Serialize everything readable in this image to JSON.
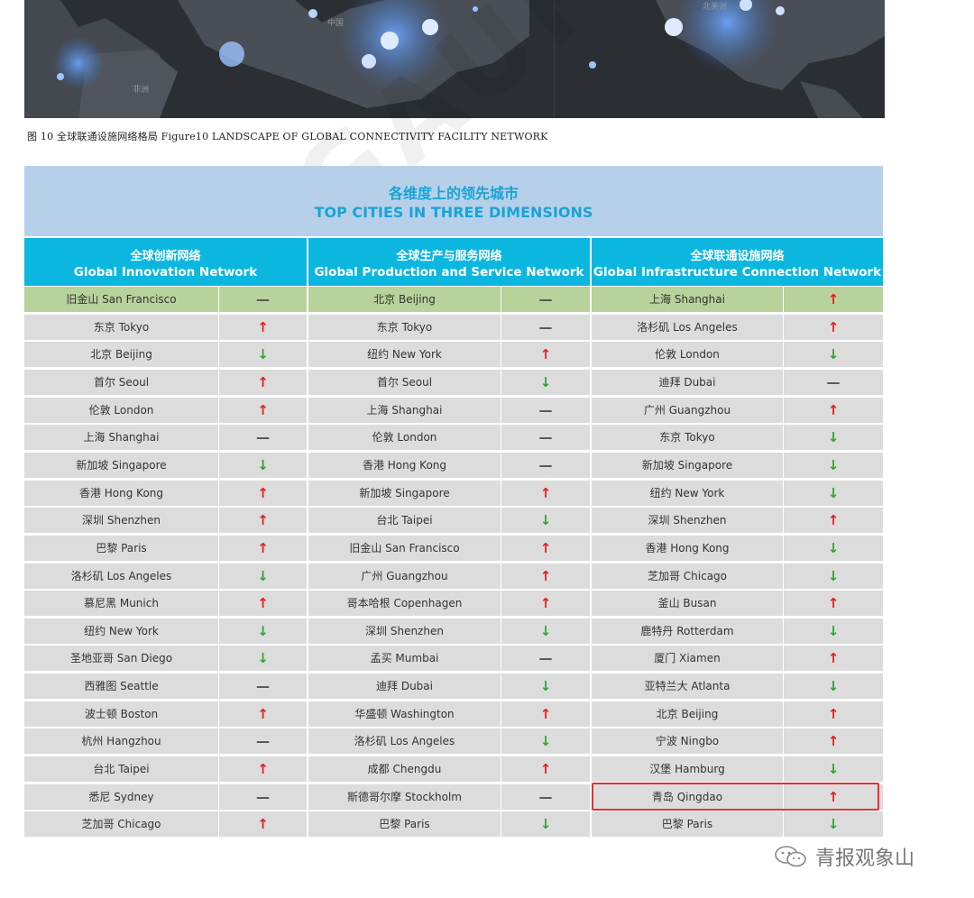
{
  "map": {
    "label_africa": "非洲",
    "label_china": "中国",
    "label_na": "北美洲"
  },
  "caption": "图 10 全球联通设施网络格局   Figure10 LANDSCAPE OF GLOBAL CONNECTIVITY FACILITY NETWORK",
  "table": {
    "title_cn": "各维度上的领先城市",
    "title_en": "TOP CITIES IN THREE DIMENSIONS",
    "columns": [
      {
        "title_cn": "全球创新网络",
        "title_en": "Global Innovation Network",
        "rows": [
          {
            "city": "旧金山 San Francisco",
            "trend": "—"
          },
          {
            "city": "东京 Tokyo",
            "trend": "↑"
          },
          {
            "city": "北京 Beijing",
            "trend": "↓"
          },
          {
            "city": "首尔 Seoul",
            "trend": "↑"
          },
          {
            "city": "伦敦 London",
            "trend": "↑"
          },
          {
            "city": "上海 Shanghai",
            "trend": "—"
          },
          {
            "city": "新加坡 Singapore",
            "trend": "↓"
          },
          {
            "city": "香港 Hong Kong",
            "trend": "↑"
          },
          {
            "city": "深圳 Shenzhen",
            "trend": "↑"
          },
          {
            "city": "巴黎 Paris",
            "trend": "↑"
          },
          {
            "city": "洛杉矶 Los Angeles",
            "trend": "↓"
          },
          {
            "city": "慕尼黑 Munich",
            "trend": "↑"
          },
          {
            "city": "纽约 New York",
            "trend": "↓"
          },
          {
            "city": "圣地亚哥 San Diego",
            "trend": "↓"
          },
          {
            "city": "西雅图 Seattle",
            "trend": "—"
          },
          {
            "city": "波士顿 Boston",
            "trend": "↑"
          },
          {
            "city": "杭州 Hangzhou",
            "trend": "—"
          },
          {
            "city": "台北 Taipei",
            "trend": "↑"
          },
          {
            "city": "悉尼 Sydney",
            "trend": "—"
          },
          {
            "city": "芝加哥 Chicago",
            "trend": "↑"
          }
        ]
      },
      {
        "title_cn": "全球生产与服务网络",
        "title_en": "Global Production and Service Network",
        "rows": [
          {
            "city": "北京 Beijing",
            "trend": "—"
          },
          {
            "city": "东京 Tokyo",
            "trend": "—"
          },
          {
            "city": "纽约 New York",
            "trend": "↑"
          },
          {
            "city": "首尔 Seoul",
            "trend": "↓"
          },
          {
            "city": "上海 Shanghai",
            "trend": "—"
          },
          {
            "city": "伦敦 London",
            "trend": "—"
          },
          {
            "city": "香港 Hong Kong",
            "trend": "—"
          },
          {
            "city": "新加坡 Singapore",
            "trend": "↑"
          },
          {
            "city": "台北 Taipei",
            "trend": "↓"
          },
          {
            "city": "旧金山 San Francisco",
            "trend": "↑"
          },
          {
            "city": "广州 Guangzhou",
            "trend": "↑"
          },
          {
            "city": "哥本哈根 Copenhagen",
            "trend": "↑"
          },
          {
            "city": "深圳 Shenzhen",
            "trend": "↓"
          },
          {
            "city": "孟买 Mumbai",
            "trend": "—"
          },
          {
            "city": "迪拜 Dubai",
            "trend": "↓"
          },
          {
            "city": "华盛顿 Washington",
            "trend": "↑"
          },
          {
            "city": "洛杉矶 Los Angeles",
            "trend": "↓"
          },
          {
            "city": "成都 Chengdu",
            "trend": "↑"
          },
          {
            "city": "斯德哥尔摩 Stockholm",
            "trend": "—"
          },
          {
            "city": "巴黎 Paris",
            "trend": "↓"
          }
        ]
      },
      {
        "title_cn": "全球联通设施网络",
        "title_en": "Global Infrastructure Connection Network",
        "rows": [
          {
            "city": "上海 Shanghai",
            "trend": "↑"
          },
          {
            "city": "洛杉矶 Los Angeles",
            "trend": "↑"
          },
          {
            "city": "伦敦 London",
            "trend": "↓"
          },
          {
            "city": "迪拜 Dubai",
            "trend": "—"
          },
          {
            "city": "广州 Guangzhou",
            "trend": "↑"
          },
          {
            "city": "东京 Tokyo",
            "trend": "↓"
          },
          {
            "city": "新加坡 Singapore",
            "trend": "↓"
          },
          {
            "city": "纽约 New York",
            "trend": "↓"
          },
          {
            "city": "深圳 Shenzhen",
            "trend": "↑"
          },
          {
            "city": "香港 Hong Kong",
            "trend": "↓"
          },
          {
            "city": "芝加哥 Chicago",
            "trend": "↓"
          },
          {
            "city": "釜山 Busan",
            "trend": "↑"
          },
          {
            "city": "鹿特丹 Rotterdam",
            "trend": "↓"
          },
          {
            "city": "厦门 Xiamen",
            "trend": "↑"
          },
          {
            "city": "亚特兰大 Atlanta",
            "trend": "↓"
          },
          {
            "city": "北京 Beijing",
            "trend": "↑"
          },
          {
            "city": "宁波 Ningbo",
            "trend": "↑"
          },
          {
            "city": "汉堡 Hamburg",
            "trend": "↓"
          },
          {
            "city": "青岛 Qingdao",
            "trend": "↑"
          },
          {
            "city": "巴黎 Paris",
            "trend": "↓"
          }
        ]
      }
    ]
  },
  "watermark": "GAUF",
  "brand": "青报观象山",
  "colors": {
    "header_bg": "#0bb7df",
    "title_bg": "#b7d0ea",
    "first_row_bg": "#b7d29a",
    "row_bg": "#dcdcdc",
    "up": "#e41e1e",
    "down": "#2fa52f",
    "highlight": "#e53030"
  }
}
